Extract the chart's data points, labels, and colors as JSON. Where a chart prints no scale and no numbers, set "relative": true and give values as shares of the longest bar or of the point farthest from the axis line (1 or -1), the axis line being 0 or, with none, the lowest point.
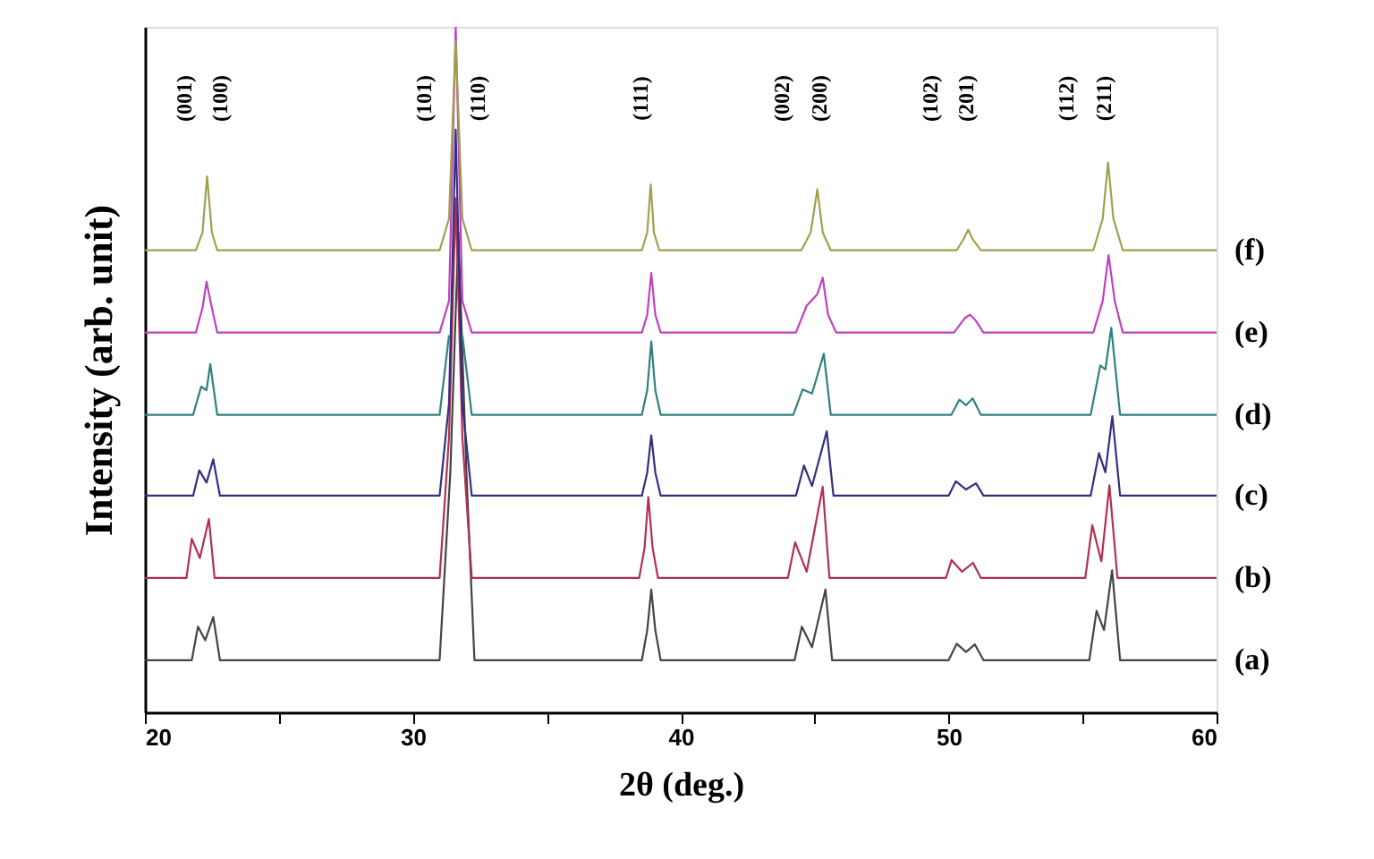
{
  "chart_data": {
    "type": "line",
    "relative": true,
    "xlabel": "2θ (deg.)",
    "ylabel": "Intensity (arb. unit)",
    "tick_labels": "x",
    "xlim": [
      20,
      60
    ],
    "xticks": [
      20,
      {
        "value": 25,
        "label": null
      },
      30,
      {
        "value": 35,
        "label": null
      },
      40,
      {
        "value": 45,
        "label": null
      },
      50,
      {
        "value": 55,
        "label": null
      },
      60
    ],
    "series": [
      {
        "name": "(a)",
        "color": "#444444",
        "x": [
          20,
          21.75,
          21.98,
          22.25,
          22.55,
          22.8,
          31.0,
          31.4,
          31.7,
          32.0,
          32.3,
          38.55,
          38.75,
          38.9,
          39.05,
          39.25,
          44.25,
          44.52,
          44.9,
          45.4,
          45.65,
          50.0,
          50.3,
          50.65,
          50.98,
          51.3,
          55.25,
          55.52,
          55.8,
          56.1,
          56.4,
          60
        ],
        "values": [
          0.076,
          0.076,
          0.125,
          0.105,
          0.139,
          0.076,
          0.076,
          0.35,
          0.7,
          0.35,
          0.076,
          0.076,
          0.12,
          0.179,
          0.12,
          0.076,
          0.076,
          0.125,
          0.095,
          0.179,
          0.076,
          0.076,
          0.1,
          0.088,
          0.099,
          0.076,
          0.076,
          0.148,
          0.12,
          0.207,
          0.076,
          0.076
        ]
      },
      {
        "name": "(b)",
        "color": "#b03050",
        "x": [
          20,
          21.55,
          21.75,
          22.05,
          22.39,
          22.6,
          31.0,
          31.35,
          31.6,
          31.85,
          32.2,
          38.45,
          38.65,
          38.79,
          38.95,
          39.15,
          44.0,
          44.27,
          44.7,
          45.3,
          45.55,
          49.9,
          50.11,
          50.5,
          50.91,
          51.2,
          55.1,
          55.36,
          55.7,
          56.0,
          56.3,
          60
        ],
        "values": [
          0.196,
          0.196,
          0.253,
          0.225,
          0.282,
          0.196,
          0.196,
          0.4,
          0.75,
          0.4,
          0.196,
          0.196,
          0.24,
          0.314,
          0.24,
          0.196,
          0.196,
          0.248,
          0.205,
          0.329,
          0.196,
          0.196,
          0.222,
          0.205,
          0.218,
          0.196,
          0.196,
          0.273,
          0.22,
          0.331,
          0.196,
          0.196
        ]
      },
      {
        "name": "(c)",
        "color": "#303080",
        "x": [
          20,
          21.8,
          22.03,
          22.3,
          22.55,
          22.8,
          31.0,
          31.35,
          31.6,
          31.85,
          32.2,
          38.55,
          38.75,
          38.9,
          39.05,
          39.25,
          44.3,
          44.6,
          44.9,
          45.45,
          45.7,
          50.0,
          50.27,
          50.65,
          51.02,
          51.3,
          55.3,
          55.61,
          55.85,
          56.11,
          56.4,
          60
        ],
        "values": [
          0.316,
          0.316,
          0.353,
          0.335,
          0.369,
          0.316,
          0.316,
          0.45,
          0.85,
          0.45,
          0.316,
          0.316,
          0.35,
          0.404,
          0.35,
          0.316,
          0.316,
          0.36,
          0.33,
          0.41,
          0.316,
          0.316,
          0.337,
          0.325,
          0.334,
          0.316,
          0.316,
          0.378,
          0.35,
          0.432,
          0.316,
          0.316
        ]
      },
      {
        "name": "(d)",
        "color": "#308080",
        "x": [
          20,
          21.8,
          22.1,
          22.3,
          22.44,
          22.7,
          31.0,
          31.35,
          31.6,
          31.85,
          32.2,
          38.55,
          38.75,
          38.9,
          39.05,
          39.25,
          44.2,
          44.55,
          44.9,
          45.34,
          45.6,
          50.1,
          50.4,
          50.65,
          50.9,
          51.2,
          55.3,
          55.66,
          55.85,
          56.07,
          56.4,
          60
        ],
        "values": [
          0.434,
          0.434,
          0.475,
          0.47,
          0.508,
          0.434,
          0.434,
          0.55,
          null,
          0.55,
          0.434,
          0.434,
          0.47,
          0.541,
          0.47,
          0.434,
          0.434,
          0.471,
          0.465,
          0.523,
          0.434,
          0.434,
          0.456,
          0.448,
          0.458,
          0.434,
          0.434,
          0.506,
          0.5,
          0.561,
          0.434,
          0.434
        ]
      },
      {
        "name": "(e)",
        "color": "#c040c0",
        "x": [
          20,
          21.9,
          22.15,
          22.3,
          22.5,
          22.7,
          31.0,
          31.35,
          31.6,
          31.85,
          32.2,
          38.55,
          38.75,
          38.9,
          39.05,
          39.25,
          44.3,
          44.7,
          45.1,
          45.3,
          45.5,
          45.8,
          50.2,
          50.6,
          50.8,
          51.0,
          51.3,
          55.4,
          55.75,
          55.97,
          56.2,
          56.5,
          60
        ],
        "values": [
          0.554,
          0.554,
          0.59,
          0.628,
          0.59,
          0.554,
          0.554,
          0.6,
          1.0,
          0.6,
          0.554,
          0.554,
          0.58,
          0.641,
          0.58,
          0.554,
          0.554,
          0.593,
          0.61,
          0.634,
          0.58,
          0.554,
          0.554,
          0.575,
          0.58,
          0.572,
          0.554,
          0.554,
          0.6,
          0.667,
          0.6,
          0.554,
          0.554
        ]
      },
      {
        "name": "(f)",
        "color": "#a0a050",
        "x": [
          20,
          21.9,
          22.15,
          22.32,
          22.5,
          22.7,
          31.0,
          31.35,
          31.6,
          31.85,
          32.2,
          38.55,
          38.75,
          38.88,
          39.0,
          39.2,
          44.5,
          44.85,
          45.1,
          45.3,
          45.6,
          50.3,
          50.55,
          50.73,
          50.9,
          51.2,
          55.4,
          55.75,
          55.95,
          56.15,
          56.5,
          60
        ],
        "values": [
          0.674,
          0.674,
          0.7,
          0.782,
          0.7,
          0.674,
          0.674,
          0.72,
          0.98,
          0.72,
          0.674,
          0.674,
          0.7,
          0.77,
          0.7,
          0.674,
          0.674,
          0.7,
          0.763,
          0.7,
          0.674,
          0.674,
          0.69,
          0.704,
          0.69,
          0.674,
          0.674,
          0.72,
          0.802,
          0.72,
          0.674,
          0.674
        ]
      }
    ],
    "annotations": [
      "(001)",
      "(100)",
      "(101)",
      "(110)",
      "(111)",
      "(002)",
      "(200)",
      "(102)",
      "(201)",
      "(112)",
      "(211)"
    ]
  }
}
